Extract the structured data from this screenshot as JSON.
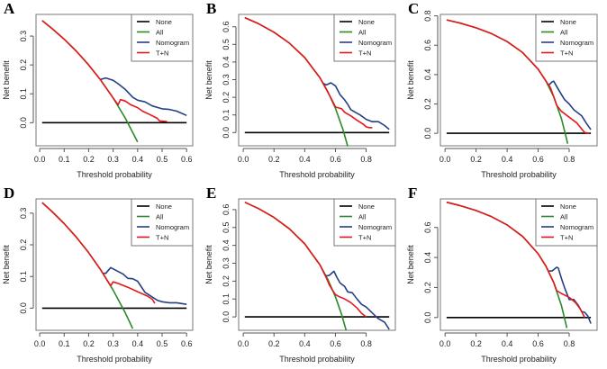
{
  "colors": {
    "None": "#000000",
    "All": "#2a8a2a",
    "Nomogram": "#253f85",
    "T+N": "#e4171c"
  },
  "legend": [
    "None",
    "All",
    "Nomogram",
    "T+N"
  ],
  "chart_data": [
    {
      "type": "line",
      "panel": "A",
      "xlabel": "Threshold probability",
      "ylabel": "Net benefit",
      "xlim": [
        -0.015,
        0.625
      ],
      "ylim": [
        -0.08,
        0.375
      ],
      "xticks": [
        0.0,
        0.1,
        0.2,
        0.3,
        0.4,
        0.5,
        0.6
      ],
      "xtick_labels": [
        "0.0",
        "0.1",
        "0.2",
        "0.3",
        "0.4",
        "0.5",
        "0.6"
      ],
      "yticks": [
        0.0,
        0.1,
        0.2,
        0.3
      ],
      "ytick_labels": [
        "0.0",
        "0.1",
        "0.2",
        "0.3"
      ],
      "legend_position": "top-right",
      "series": [
        {
          "name": "None",
          "x": [
            0.01,
            0.6
          ],
          "y": [
            0,
            0
          ]
        },
        {
          "name": "All",
          "x": [
            0.01,
            0.05,
            0.1,
            0.15,
            0.2,
            0.25,
            0.3,
            0.35,
            0.4
          ],
          "y": [
            0.3535,
            0.3263,
            0.2889,
            0.2471,
            0.2,
            0.1467,
            0.0857,
            0.0154,
            -0.0667
          ]
        },
        {
          "name": "Nomogram",
          "x": [
            0.25,
            0.27,
            0.3,
            0.32,
            0.35,
            0.38,
            0.4,
            0.43,
            0.46,
            0.5,
            0.53,
            0.56,
            0.6
          ],
          "y": [
            0.15,
            0.155,
            0.147,
            0.135,
            0.115,
            0.088,
            0.078,
            0.072,
            0.058,
            0.048,
            0.046,
            0.04,
            0.025
          ]
        },
        {
          "name": "T+N",
          "x": [
            0.01,
            0.05,
            0.1,
            0.15,
            0.2,
            0.25,
            0.3,
            0.32,
            0.33,
            0.35,
            0.37,
            0.4,
            0.42,
            0.45,
            0.48,
            0.49,
            0.52
          ],
          "y": [
            0.3535,
            0.3263,
            0.2889,
            0.2471,
            0.2,
            0.1467,
            0.0857,
            0.062,
            0.08,
            0.075,
            0.063,
            0.052,
            0.04,
            0.028,
            0.015,
            0.006,
            0.004
          ]
        }
      ]
    },
    {
      "type": "line",
      "panel": "B",
      "xlabel": "Threshold probability",
      "ylabel": "Net benefit",
      "xlim": [
        -0.03,
        0.99
      ],
      "ylim": [
        -0.075,
        0.67
      ],
      "xticks": [
        0.0,
        0.2,
        0.4,
        0.6,
        0.8
      ],
      "xtick_labels": [
        "0.0",
        "0.2",
        "0.4",
        "0.6",
        "0.8"
      ],
      "yticks": [
        0.0,
        0.1,
        0.2,
        0.3,
        0.4,
        0.5,
        0.6
      ],
      "ytick_labels": [
        "0.0",
        "0.1",
        "0.2",
        "0.3",
        "0.4",
        "0.5",
        "0.6"
      ],
      "legend_position": "top-right",
      "series": [
        {
          "name": "None",
          "x": [
            0.01,
            0.95
          ],
          "y": [
            0,
            0
          ]
        },
        {
          "name": "All",
          "x": [
            0.01,
            0.1,
            0.2,
            0.3,
            0.4,
            0.5,
            0.55,
            0.6,
            0.65,
            0.68
          ],
          "y": [
            0.6515,
            0.6167,
            0.5688,
            0.5071,
            0.425,
            0.31,
            0.2333,
            0.1375,
            0.0143,
            -0.078
          ]
        },
        {
          "name": "Nomogram",
          "x": [
            0.52,
            0.54,
            0.57,
            0.6,
            0.63,
            0.66,
            0.68,
            0.7,
            0.73,
            0.76,
            0.8,
            0.84,
            0.88,
            0.92,
            0.95
          ],
          "y": [
            0.28,
            0.27,
            0.282,
            0.265,
            0.215,
            0.185,
            0.16,
            0.13,
            0.115,
            0.1,
            0.075,
            0.062,
            0.062,
            0.04,
            0.018
          ]
        },
        {
          "name": "T+N",
          "x": [
            0.01,
            0.1,
            0.2,
            0.3,
            0.4,
            0.5,
            0.55,
            0.58,
            0.6,
            0.62,
            0.64,
            0.66,
            0.7,
            0.74,
            0.78,
            0.8,
            0.82,
            0.84
          ],
          "y": [
            0.6515,
            0.6167,
            0.5688,
            0.5071,
            0.425,
            0.31,
            0.23,
            0.18,
            0.145,
            0.14,
            0.135,
            0.115,
            0.095,
            0.07,
            0.048,
            0.032,
            0.028,
            0.028
          ]
        }
      ]
    },
    {
      "type": "line",
      "panel": "C",
      "xlabel": "Threshold probability",
      "ylabel": "Net benefit",
      "xlim": [
        -0.03,
        0.98
      ],
      "ylim": [
        -0.085,
        0.81
      ],
      "xticks": [
        0.0,
        0.2,
        0.4,
        0.6,
        0.8
      ],
      "xtick_labels": [
        "0.0",
        "0.2",
        "0.4",
        "0.6",
        "0.8"
      ],
      "yticks": [
        0.0,
        0.2,
        0.4,
        0.6,
        0.8
      ],
      "ytick_labels": [
        "0.0",
        "0.2",
        "0.4",
        "0.6",
        "0.8"
      ],
      "legend_position": "top-right",
      "series": [
        {
          "name": "None",
          "x": [
            0.01,
            0.94
          ],
          "y": [
            0,
            0
          ]
        },
        {
          "name": "All",
          "x": [
            0.01,
            0.1,
            0.2,
            0.3,
            0.4,
            0.5,
            0.6,
            0.65,
            0.7,
            0.75,
            0.78,
            0.79
          ],
          "y": [
            0.7727,
            0.75,
            0.7188,
            0.6786,
            0.625,
            0.55,
            0.4375,
            0.3571,
            0.25,
            0.1,
            -0.0227,
            -0.071
          ]
        },
        {
          "name": "Nomogram",
          "x": [
            0.67,
            0.69,
            0.7,
            0.73,
            0.77,
            0.8,
            0.83,
            0.88,
            0.91,
            0.94
          ],
          "y": [
            0.33,
            0.35,
            0.355,
            0.3,
            0.23,
            0.2,
            0.16,
            0.12,
            0.07,
            0.025
          ]
        },
        {
          "name": "T+N",
          "x": [
            0.01,
            0.1,
            0.2,
            0.3,
            0.4,
            0.5,
            0.6,
            0.65,
            0.68,
            0.7,
            0.72,
            0.75,
            0.8,
            0.85,
            0.88,
            0.9,
            0.93
          ],
          "y": [
            0.7727,
            0.75,
            0.7188,
            0.6786,
            0.625,
            0.55,
            0.4375,
            0.3571,
            0.31,
            0.25,
            0.19,
            0.15,
            0.11,
            0.07,
            0.03,
            0.005,
            0.0
          ]
        }
      ]
    },
    {
      "type": "line",
      "panel": "D",
      "xlabel": "Threshold probability",
      "ylabel": "Net benefit",
      "xlim": [
        -0.015,
        0.625
      ],
      "ylim": [
        -0.07,
        0.345
      ],
      "xticks": [
        0.0,
        0.1,
        0.2,
        0.3,
        0.4,
        0.5,
        0.6
      ],
      "xtick_labels": [
        "0.0",
        "0.1",
        "0.2",
        "0.3",
        "0.4",
        "0.5",
        "0.6"
      ],
      "yticks": [
        0.0,
        0.1,
        0.2,
        0.3
      ],
      "ytick_labels": [
        "0.0",
        "0.1",
        "0.2",
        "0.3"
      ],
      "legend_position": "top-right",
      "series": [
        {
          "name": "None",
          "x": [
            0.01,
            0.6
          ],
          "y": [
            0,
            0
          ]
        },
        {
          "name": "All",
          "x": [
            0.01,
            0.05,
            0.1,
            0.15,
            0.2,
            0.25,
            0.3,
            0.35,
            0.38
          ],
          "y": [
            0.3333,
            0.3053,
            0.2667,
            0.2235,
            0.175,
            0.12,
            0.0571,
            -0.0154,
            -0.0645
          ]
        },
        {
          "name": "Nomogram",
          "x": [
            0.26,
            0.27,
            0.29,
            0.31,
            0.34,
            0.36,
            0.38,
            0.4,
            0.43,
            0.46,
            0.48,
            0.5,
            0.53,
            0.56,
            0.6
          ],
          "y": [
            0.11,
            0.11,
            0.128,
            0.12,
            0.108,
            0.094,
            0.093,
            0.085,
            0.05,
            0.035,
            0.025,
            0.02,
            0.017,
            0.017,
            0.012
          ]
        },
        {
          "name": "T+N",
          "x": [
            0.01,
            0.05,
            0.1,
            0.15,
            0.2,
            0.25,
            0.29,
            0.3,
            0.32,
            0.36,
            0.4,
            0.44,
            0.46,
            0.47
          ],
          "y": [
            0.3333,
            0.3053,
            0.2667,
            0.2235,
            0.175,
            0.12,
            0.0704,
            0.083,
            0.078,
            0.066,
            0.052,
            0.038,
            0.028,
            0.015
          ]
        }
      ]
    },
    {
      "type": "line",
      "panel": "E",
      "xlabel": "Threshold probability",
      "ylabel": "Net benefit",
      "xlim": [
        -0.03,
        0.99
      ],
      "ylim": [
        -0.075,
        0.66
      ],
      "xticks": [
        0.0,
        0.2,
        0.4,
        0.6,
        0.8
      ],
      "xtick_labels": [
        "0.0",
        "0.2",
        "0.4",
        "0.6",
        "0.8"
      ],
      "yticks": [
        0.0,
        0.1,
        0.2,
        0.3,
        0.4,
        0.5,
        0.6
      ],
      "ytick_labels": [
        "0.0",
        "0.1",
        "0.2",
        "0.3",
        "0.4",
        "0.5",
        "0.6"
      ],
      "legend_position": "top-right",
      "series": [
        {
          "name": "None",
          "x": [
            0.01,
            0.95
          ],
          "y": [
            0,
            0
          ]
        },
        {
          "name": "All",
          "x": [
            0.01,
            0.1,
            0.2,
            0.3,
            0.4,
            0.5,
            0.55,
            0.6,
            0.64,
            0.67
          ],
          "y": [
            0.6414,
            0.6056,
            0.5563,
            0.4929,
            0.4083,
            0.29,
            0.2111,
            0.1125,
            0.0139,
            -0.0758
          ]
        },
        {
          "name": "Nomogram",
          "x": [
            0.54,
            0.56,
            0.59,
            0.61,
            0.63,
            0.66,
            0.68,
            0.71,
            0.74,
            0.77,
            0.8,
            0.83,
            0.86,
            0.88,
            0.92,
            0.95
          ],
          "y": [
            0.23,
            0.232,
            0.255,
            0.22,
            0.19,
            0.17,
            0.14,
            0.135,
            0.1,
            0.07,
            0.055,
            0.03,
            0.005,
            -0.01,
            -0.03,
            -0.07
          ]
        },
        {
          "name": "T+N",
          "x": [
            0.01,
            0.1,
            0.2,
            0.3,
            0.4,
            0.5,
            0.54,
            0.56,
            0.58,
            0.6,
            0.62,
            0.66,
            0.7,
            0.74,
            0.77,
            0.8
          ],
          "y": [
            0.6414,
            0.6056,
            0.5563,
            0.4929,
            0.4083,
            0.29,
            0.22,
            0.18,
            0.15,
            0.125,
            0.115,
            0.1,
            0.08,
            0.05,
            0.02,
            0.0
          ]
        }
      ]
    },
    {
      "type": "line",
      "panel": "F",
      "xlabel": "Threshold probability",
      "ylabel": "Net benefit",
      "xlim": [
        -0.03,
        0.98
      ],
      "ylim": [
        -0.085,
        0.79
      ],
      "xticks": [
        0.0,
        0.2,
        0.4,
        0.6,
        0.8
      ],
      "xtick_labels": [
        "0.0",
        "0.2",
        "0.4",
        "0.6",
        "0.8"
      ],
      "yticks": [
        0.0,
        0.2,
        0.4,
        0.6
      ],
      "ytick_labels": [
        "0.0",
        "0.2",
        "0.4",
        "0.6"
      ],
      "legend_position": "top-right",
      "series": [
        {
          "name": "None",
          "x": [
            0.01,
            0.94
          ],
          "y": [
            0,
            0
          ]
        },
        {
          "name": "All",
          "x": [
            0.01,
            0.1,
            0.2,
            0.3,
            0.4,
            0.5,
            0.6,
            0.65,
            0.7,
            0.75,
            0.78,
            0.785
          ],
          "y": [
            0.7677,
            0.7444,
            0.7125,
            0.6714,
            0.6167,
            0.54,
            0.425,
            0.3429,
            0.2333,
            0.08,
            -0.0455,
            -0.0697
          ]
        },
        {
          "name": "Nomogram",
          "x": [
            0.67,
            0.69,
            0.72,
            0.73,
            0.75,
            0.77,
            0.8,
            0.83,
            0.86,
            0.88,
            0.9,
            0.92,
            0.94
          ],
          "y": [
            0.31,
            0.31,
            0.335,
            0.33,
            0.26,
            0.2,
            0.12,
            0.12,
            0.08,
            0.04,
            0.035,
            0.01,
            -0.04
          ]
        },
        {
          "name": "T+N",
          "x": [
            0.01,
            0.1,
            0.2,
            0.3,
            0.4,
            0.5,
            0.6,
            0.65,
            0.7,
            0.72,
            0.75,
            0.8,
            0.84,
            0.87,
            0.9
          ],
          "y": [
            0.7677,
            0.7444,
            0.7125,
            0.6714,
            0.6167,
            0.54,
            0.425,
            0.3429,
            0.2333,
            0.1786,
            0.16,
            0.135,
            0.1,
            0.06,
            0.0
          ]
        }
      ]
    }
  ]
}
